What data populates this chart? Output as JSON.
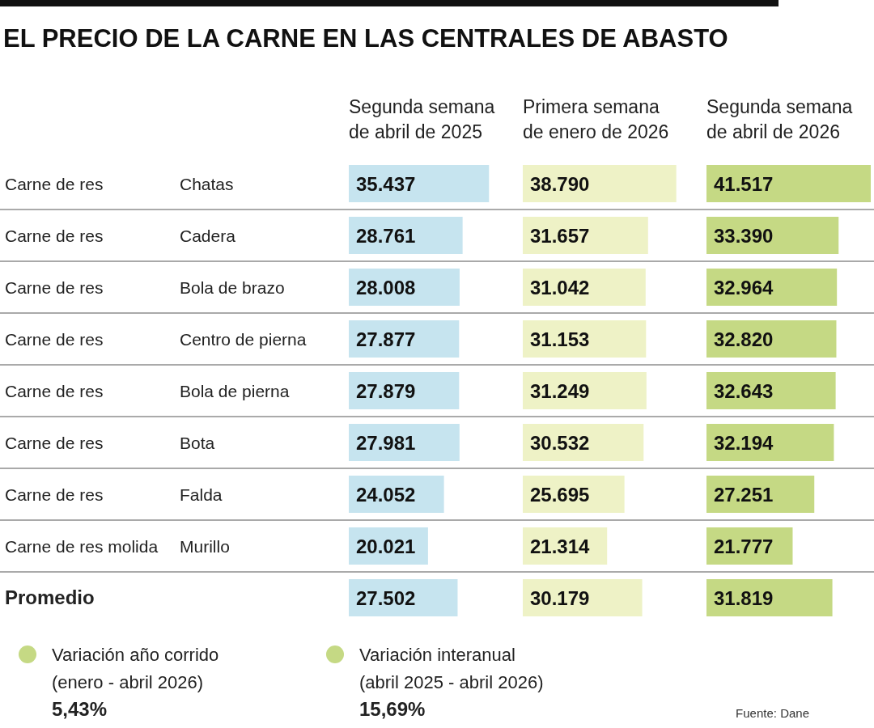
{
  "chart_data": [
    {
      "type": "bar",
      "orientation": "horizontal",
      "title": "EL PRECIO DE LA CARNE EN LAS CENTRALES DE ABASTO",
      "categories": [
        "Carne de res",
        "Carne de res",
        "Carne de res",
        "Carne de res",
        "Carne de res",
        "Carne de res",
        "Carne de res",
        "Carne de res molida",
        "Promedio"
      ],
      "series": [
        {
          "name": "Segunda semana de abril de 2025",
          "color": "#c6e4ef",
          "values": [
            35437,
            28761,
            28008,
            27877,
            27879,
            27981,
            24052,
            20021,
            27502
          ],
          "value_labels": [
            "35.437",
            "28.761",
            "28.008",
            "27.877",
            "27.879",
            "27.981",
            "24.052",
            "20.021",
            "27.502"
          ]
        }
      ],
      "annotations": [
        "Chatas",
        "Cadera",
        "Bola de brazo",
        "Centro de pierna",
        "Bola de pierna",
        "Bota",
        "Falda",
        "Murillo",
        "Variación año corrido",
        "(enero - abril 2026)",
        "5,43%",
        "Variación interanual",
        "(abril 2025 - abril 2026)",
        "15,69%",
        "Fuente: Dane"
      ]
    },
    {
      "type": "bar",
      "orientation": "horizontal",
      "series": [
        {
          "name": "Primera semana de enero de 2026",
          "color": "#eef2c6",
          "values": [
            38790,
            31657,
            31042,
            31153,
            31249,
            30532,
            25695,
            21314,
            30179
          ],
          "value_labels": [
            "38.790",
            "31.657",
            "31.042",
            "31.153",
            "31.249",
            "30.532",
            "25.695",
            "21.314",
            "30.179"
          ]
        }
      ]
    },
    {
      "type": "bar",
      "orientation": "horizontal",
      "series": [
        {
          "name": "Segunda semana de abril de 2026",
          "color": "#c5d984",
          "values": [
            41517,
            33390,
            32964,
            32820,
            32643,
            32194,
            27251,
            21777,
            31819
          ],
          "value_labels": [
            "41.517",
            "33.390",
            "32.964",
            "32.820",
            "32.643",
            "32.194",
            "27.251",
            "21.777",
            "31.819"
          ]
        }
      ]
    }
  ]
}
